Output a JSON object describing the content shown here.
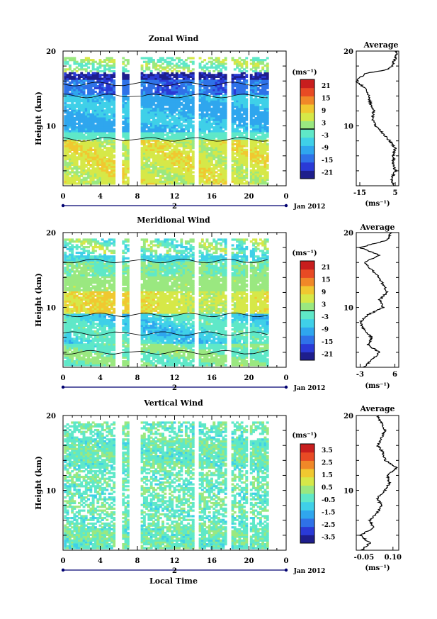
{
  "colors": {
    "colormap": [
      "#1e1e8c",
      "#2a3ad6",
      "#2f72e8",
      "#2fa6ee",
      "#3fd0e8",
      "#5fe8c8",
      "#9ae880",
      "#d6e848",
      "#f0c830",
      "#f08828",
      "#e84a24",
      "#c81e1e"
    ],
    "contour": "#000000",
    "axis": "#000000",
    "date_bar": "#000070"
  },
  "x_axis": {
    "ticks": [
      "0",
      "4",
      "8",
      "12",
      "16",
      "20",
      "0"
    ],
    "day_label": "2",
    "month_label": "Jan 2012",
    "xlabel": "Local Time"
  },
  "chart_data": [
    {
      "type": "heatmap",
      "title": "Zonal Wind",
      "ylabel": "Height (km)",
      "y_ticks": [
        "20",
        "10"
      ],
      "ylim": [
        2,
        20
      ],
      "xlim": [
        0,
        24
      ],
      "colorbar": {
        "unit": "(ms⁻¹)",
        "ticks": [
          "21",
          "15",
          "9",
          "3",
          "-3",
          "-9",
          "-15",
          "-21"
        ],
        "range": [
          -24,
          24
        ]
      },
      "contour_level": 0,
      "profile": {
        "title": "Average",
        "xlabel": "(ms⁻¹)",
        "x_ticks": [
          "-15",
          "5"
        ],
        "xlim": [
          -17,
          7
        ],
        "y_ticks": [
          "20",
          "10"
        ],
        "heights": [
          2,
          3,
          4,
          5,
          6,
          7,
          8,
          9,
          10,
          11,
          12,
          13,
          14,
          15,
          16,
          17,
          17.5,
          18,
          19,
          20
        ],
        "values": [
          4,
          3,
          5,
          4,
          4,
          5,
          2,
          -2,
          -6,
          -8,
          -7,
          -9,
          -10,
          -12,
          -17,
          -12,
          0,
          3,
          5,
          6
        ]
      }
    },
    {
      "type": "heatmap",
      "title": "Meridional Wind",
      "ylabel": "Height (km)",
      "y_ticks": [
        "20",
        "10"
      ],
      "ylim": [
        2,
        20
      ],
      "xlim": [
        0,
        24
      ],
      "colorbar": {
        "unit": "(ms⁻¹)",
        "ticks": [
          "21",
          "15",
          "9",
          "3",
          "-3",
          "-9",
          "-15",
          "-21"
        ],
        "range": [
          -24,
          24
        ]
      },
      "contour_level": 0,
      "profile": {
        "title": "Average",
        "xlabel": "(ms⁻¹)",
        "x_ticks": [
          "-3",
          "6"
        ],
        "xlim": [
          -4,
          7
        ],
        "y_ticks": [
          "20",
          "10"
        ],
        "heights": [
          2,
          3,
          4,
          5,
          6,
          7,
          8,
          9,
          10,
          11,
          12,
          13,
          14,
          15,
          16,
          17,
          18,
          19,
          20
        ],
        "values": [
          -2,
          0,
          2,
          -1,
          0,
          -2,
          -3,
          -1,
          3,
          2,
          4,
          3,
          2,
          0,
          -2,
          2,
          -3,
          4,
          5
        ]
      }
    },
    {
      "type": "heatmap",
      "title": "Vertical Wind",
      "ylabel": "Height (km)",
      "y_ticks": [
        "20",
        "10"
      ],
      "ylim": [
        2,
        20
      ],
      "xlim": [
        0,
        24
      ],
      "colorbar": {
        "unit": "(ms⁻¹)",
        "ticks": [
          "3.5",
          "2.5",
          "1.5",
          "0.5",
          "-0.5",
          "-1.5",
          "-2.5",
          "-3.5"
        ],
        "range": [
          -4,
          4
        ]
      },
      "contour_level": null,
      "profile": {
        "title": "Average",
        "xlabel": "(ms⁻¹)",
        "x_ticks": [
          "-0.05",
          "0.10"
        ],
        "xlim": [
          -0.09,
          0.13
        ],
        "y_ticks": [
          "20",
          "10"
        ],
        "heights": [
          2,
          3,
          4,
          5,
          6,
          7,
          8,
          9,
          10,
          11,
          12,
          13,
          14,
          15,
          16,
          17,
          18,
          19,
          20
        ],
        "values": [
          -0.06,
          -0.02,
          -0.07,
          0.0,
          -0.02,
          0.02,
          0.04,
          0.02,
          0.06,
          0.08,
          0.07,
          0.12,
          0.06,
          0.05,
          0.02,
          0.04,
          0.06,
          0.04,
          0.02
        ]
      }
    }
  ]
}
